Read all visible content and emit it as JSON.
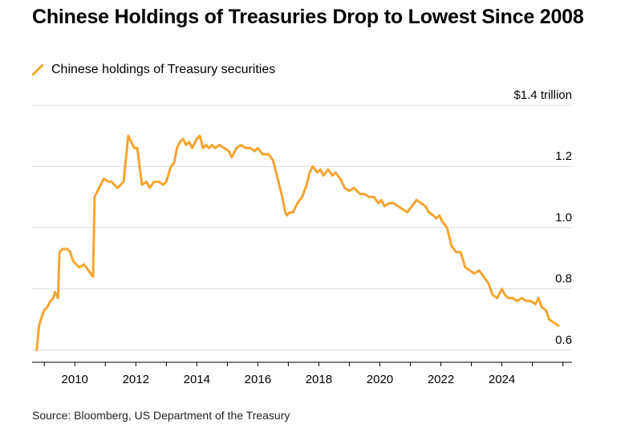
{
  "title": "Chinese Holdings of Treasuries Drop to Lowest Since 2008",
  "legend_label": "Chinese holdings of Treasury securities",
  "source": "Source: Bloomberg, US Department of the Treasury",
  "colors": {
    "line": "#f5a431",
    "grid": "#d9d9d9",
    "axis": "#000000"
  },
  "chart_data": {
    "type": "line",
    "ylabel": "$1.4 trillion",
    "xlim": [
      2008.6,
      2026.3
    ],
    "ylim": [
      0.56,
      1.4
    ],
    "x_ticks": [
      2010,
      2012,
      2014,
      2016,
      2018,
      2020,
      2022,
      2024
    ],
    "x_tick_labels": [
      "2010",
      "2012",
      "2014",
      "2016",
      "2018",
      "2020",
      "2022",
      "2024"
    ],
    "y_ticks": [
      1.4,
      1.2,
      1.0,
      0.8,
      0.6
    ],
    "y_tick_labels": [
      "$1.4 trillion",
      "1.2",
      "1.0",
      "0.8",
      "0.6"
    ],
    "grid": "horizontal",
    "series": [
      {
        "name": "Chinese holdings of Treasury securities",
        "x": [
          2008.75,
          2008.83,
          2008.92,
          2009.0,
          2009.1,
          2009.2,
          2009.3,
          2009.35,
          2009.45,
          2009.5,
          2009.6,
          2009.65,
          2009.75,
          2009.85,
          2009.95,
          2010.05,
          2010.15,
          2010.3,
          2010.45,
          2010.6,
          2010.65,
          2010.75,
          2010.95,
          2011.1,
          2011.2,
          2011.4,
          2011.6,
          2011.75,
          2011.85,
          2011.95,
          2012.05,
          2012.2,
          2012.35,
          2012.45,
          2012.6,
          2012.75,
          2012.9,
          2013.0,
          2013.15,
          2013.25,
          2013.35,
          2013.45,
          2013.55,
          2013.65,
          2013.75,
          2013.85,
          2014.0,
          2014.1,
          2014.2,
          2014.3,
          2014.4,
          2014.5,
          2014.6,
          2014.75,
          2014.9,
          2015.05,
          2015.15,
          2015.3,
          2015.45,
          2015.6,
          2015.75,
          2015.9,
          2016.0,
          2016.15,
          2016.35,
          2016.5,
          2016.65,
          2016.8,
          2016.9,
          2016.95,
          2017.05,
          2017.15,
          2017.3,
          2017.45,
          2017.6,
          2017.7,
          2017.8,
          2017.95,
          2018.05,
          2018.15,
          2018.3,
          2018.45,
          2018.55,
          2018.7,
          2018.85,
          2019.0,
          2019.15,
          2019.35,
          2019.5,
          2019.65,
          2019.8,
          2019.95,
          2020.05,
          2020.15,
          2020.3,
          2020.45,
          2020.6,
          2020.75,
          2020.9,
          2021.05,
          2021.2,
          2021.35,
          2021.5,
          2021.6,
          2021.75,
          2021.85,
          2021.95,
          2022.05,
          2022.2,
          2022.35,
          2022.5,
          2022.65,
          2022.8,
          2022.95,
          2023.1,
          2023.25,
          2023.4,
          2023.55,
          2023.7,
          2023.85,
          2024.0,
          2024.1,
          2024.2,
          2024.35,
          2024.5,
          2024.65,
          2024.8,
          2024.95,
          2025.1,
          2025.2,
          2025.3,
          2025.45,
          2025.55,
          2025.7,
          2025.85
        ],
        "values": [
          0.6,
          0.68,
          0.71,
          0.73,
          0.74,
          0.76,
          0.77,
          0.79,
          0.77,
          0.92,
          0.93,
          0.93,
          0.93,
          0.92,
          0.89,
          0.88,
          0.87,
          0.88,
          0.86,
          0.84,
          1.1,
          1.12,
          1.16,
          1.15,
          1.15,
          1.13,
          1.15,
          1.3,
          1.28,
          1.26,
          1.26,
          1.14,
          1.15,
          1.13,
          1.15,
          1.15,
          1.14,
          1.15,
          1.2,
          1.21,
          1.26,
          1.28,
          1.29,
          1.27,
          1.28,
          1.26,
          1.29,
          1.3,
          1.26,
          1.27,
          1.26,
          1.27,
          1.26,
          1.27,
          1.26,
          1.25,
          1.23,
          1.26,
          1.27,
          1.26,
          1.26,
          1.25,
          1.26,
          1.24,
          1.24,
          1.22,
          1.16,
          1.1,
          1.05,
          1.04,
          1.05,
          1.05,
          1.08,
          1.1,
          1.14,
          1.18,
          1.2,
          1.18,
          1.19,
          1.17,
          1.19,
          1.17,
          1.18,
          1.16,
          1.13,
          1.12,
          1.13,
          1.11,
          1.11,
          1.1,
          1.1,
          1.08,
          1.09,
          1.07,
          1.08,
          1.08,
          1.07,
          1.06,
          1.05,
          1.07,
          1.09,
          1.08,
          1.07,
          1.05,
          1.04,
          1.03,
          1.04,
          1.02,
          1.0,
          0.94,
          0.92,
          0.92,
          0.87,
          0.86,
          0.85,
          0.86,
          0.84,
          0.82,
          0.78,
          0.77,
          0.8,
          0.78,
          0.77,
          0.77,
          0.76,
          0.77,
          0.76,
          0.76,
          0.75,
          0.77,
          0.74,
          0.73,
          0.7,
          0.69,
          0.68
        ]
      }
    ]
  }
}
